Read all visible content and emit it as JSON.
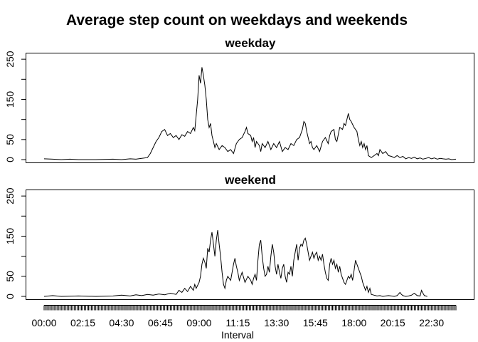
{
  "chart_data": {
    "type": "line",
    "title": "Average step count on weekdays and weekends",
    "xlabel": "Interval",
    "ylabel": "",
    "x_tick_labels": [
      "00:00",
      "02:15",
      "04:30",
      "06:45",
      "09:00",
      "11:15",
      "13:30",
      "15:45",
      "18:00",
      "20:15",
      "22:30"
    ],
    "y_ticks": [
      0,
      50,
      150,
      250
    ],
    "ylim": [
      0,
      260
    ],
    "interval_minutes": 5,
    "intervals_per_day": 288,
    "panels": [
      {
        "name": "weekday",
        "points": [
          [
            0,
            2
          ],
          [
            30,
            1
          ],
          [
            60,
            0
          ],
          [
            90,
            1
          ],
          [
            120,
            0
          ],
          [
            180,
            0
          ],
          [
            240,
            1
          ],
          [
            270,
            0
          ],
          [
            300,
            2
          ],
          [
            320,
            1
          ],
          [
            340,
            3
          ],
          [
            360,
            5
          ],
          [
            370,
            15
          ],
          [
            380,
            30
          ],
          [
            390,
            45
          ],
          [
            400,
            55
          ],
          [
            410,
            70
          ],
          [
            420,
            75
          ],
          [
            430,
            60
          ],
          [
            440,
            65
          ],
          [
            450,
            55
          ],
          [
            460,
            60
          ],
          [
            470,
            50
          ],
          [
            480,
            62
          ],
          [
            490,
            58
          ],
          [
            500,
            70
          ],
          [
            510,
            65
          ],
          [
            520,
            80
          ],
          [
            525,
            72
          ],
          [
            530,
            110
          ],
          [
            535,
            150
          ],
          [
            540,
            210
          ],
          [
            545,
            190
          ],
          [
            550,
            230
          ],
          [
            555,
            210
          ],
          [
            560,
            185
          ],
          [
            565,
            150
          ],
          [
            570,
            100
          ],
          [
            575,
            80
          ],
          [
            580,
            90
          ],
          [
            585,
            60
          ],
          [
            590,
            45
          ],
          [
            595,
            30
          ],
          [
            600,
            40
          ],
          [
            610,
            25
          ],
          [
            620,
            35
          ],
          [
            630,
            30
          ],
          [
            640,
            20
          ],
          [
            650,
            25
          ],
          [
            660,
            15
          ],
          [
            670,
            40
          ],
          [
            680,
            50
          ],
          [
            690,
            55
          ],
          [
            700,
            70
          ],
          [
            705,
            80
          ],
          [
            710,
            65
          ],
          [
            720,
            60
          ],
          [
            725,
            45
          ],
          [
            730,
            55
          ],
          [
            735,
            30
          ],
          [
            740,
            45
          ],
          [
            750,
            35
          ],
          [
            755,
            20
          ],
          [
            760,
            40
          ],
          [
            770,
            30
          ],
          [
            780,
            45
          ],
          [
            790,
            25
          ],
          [
            800,
            40
          ],
          [
            810,
            30
          ],
          [
            820,
            45
          ],
          [
            830,
            20
          ],
          [
            840,
            30
          ],
          [
            850,
            25
          ],
          [
            860,
            40
          ],
          [
            870,
            35
          ],
          [
            880,
            50
          ],
          [
            890,
            55
          ],
          [
            900,
            75
          ],
          [
            905,
            95
          ],
          [
            910,
            90
          ],
          [
            915,
            70
          ],
          [
            920,
            55
          ],
          [
            925,
            40
          ],
          [
            930,
            45
          ],
          [
            935,
            30
          ],
          [
            940,
            25
          ],
          [
            950,
            35
          ],
          [
            960,
            20
          ],
          [
            970,
            45
          ],
          [
            980,
            55
          ],
          [
            990,
            40
          ],
          [
            995,
            60
          ],
          [
            1000,
            70
          ],
          [
            1010,
            75
          ],
          [
            1015,
            50
          ],
          [
            1020,
            45
          ],
          [
            1030,
            80
          ],
          [
            1040,
            75
          ],
          [
            1045,
            90
          ],
          [
            1050,
            85
          ],
          [
            1055,
            100
          ],
          [
            1060,
            115
          ],
          [
            1065,
            100
          ],
          [
            1070,
            95
          ],
          [
            1080,
            80
          ],
          [
            1090,
            70
          ],
          [
            1095,
            50
          ],
          [
            1100,
            35
          ],
          [
            1105,
            45
          ],
          [
            1110,
            30
          ],
          [
            1115,
            40
          ],
          [
            1120,
            25
          ],
          [
            1125,
            35
          ],
          [
            1130,
            10
          ],
          [
            1140,
            5
          ],
          [
            1150,
            10
          ],
          [
            1160,
            15
          ],
          [
            1165,
            10
          ],
          [
            1170,
            25
          ],
          [
            1175,
            20
          ],
          [
            1180,
            15
          ],
          [
            1190,
            20
          ],
          [
            1200,
            10
          ],
          [
            1210,
            8
          ],
          [
            1220,
            5
          ],
          [
            1230,
            10
          ],
          [
            1240,
            5
          ],
          [
            1250,
            8
          ],
          [
            1260,
            2
          ],
          [
            1270,
            5
          ],
          [
            1280,
            3
          ],
          [
            1290,
            6
          ],
          [
            1300,
            2
          ],
          [
            1310,
            4
          ],
          [
            1320,
            1
          ],
          [
            1330,
            3
          ],
          [
            1340,
            5
          ],
          [
            1350,
            2
          ],
          [
            1360,
            4
          ],
          [
            1370,
            1
          ],
          [
            1380,
            3
          ],
          [
            1390,
            2
          ],
          [
            1400,
            1
          ],
          [
            1410,
            2
          ],
          [
            1420,
            0
          ],
          [
            1435,
            1
          ]
        ]
      },
      {
        "name": "weekend",
        "points": [
          [
            0,
            0
          ],
          [
            30,
            2
          ],
          [
            60,
            0
          ],
          [
            120,
            1
          ],
          [
            180,
            0
          ],
          [
            240,
            1
          ],
          [
            270,
            3
          ],
          [
            300,
            1
          ],
          [
            320,
            4
          ],
          [
            340,
            2
          ],
          [
            360,
            5
          ],
          [
            380,
            3
          ],
          [
            400,
            6
          ],
          [
            420,
            4
          ],
          [
            440,
            8
          ],
          [
            460,
            5
          ],
          [
            470,
            15
          ],
          [
            480,
            10
          ],
          [
            490,
            20
          ],
          [
            500,
            12
          ],
          [
            510,
            25
          ],
          [
            520,
            15
          ],
          [
            525,
            30
          ],
          [
            530,
            20
          ],
          [
            540,
            35
          ],
          [
            545,
            50
          ],
          [
            550,
            80
          ],
          [
            555,
            95
          ],
          [
            560,
            85
          ],
          [
            565,
            70
          ],
          [
            570,
            120
          ],
          [
            575,
            110
          ],
          [
            580,
            140
          ],
          [
            585,
            160
          ],
          [
            590,
            130
          ],
          [
            595,
            100
          ],
          [
            600,
            140
          ],
          [
            605,
            165
          ],
          [
            610,
            130
          ],
          [
            615,
            100
          ],
          [
            620,
            60
          ],
          [
            625,
            30
          ],
          [
            630,
            20
          ],
          [
            635,
            40
          ],
          [
            640,
            50
          ],
          [
            650,
            40
          ],
          [
            655,
            60
          ],
          [
            660,
            80
          ],
          [
            665,
            95
          ],
          [
            670,
            75
          ],
          [
            675,
            60
          ],
          [
            680,
            40
          ],
          [
            690,
            60
          ],
          [
            700,
            35
          ],
          [
            710,
            50
          ],
          [
            720,
            40
          ],
          [
            725,
            30
          ],
          [
            730,
            45
          ],
          [
            735,
            55
          ],
          [
            740,
            40
          ],
          [
            745,
            90
          ],
          [
            750,
            130
          ],
          [
            755,
            140
          ],
          [
            760,
            100
          ],
          [
            765,
            70
          ],
          [
            770,
            50
          ],
          [
            775,
            55
          ],
          [
            780,
            75
          ],
          [
            785,
            60
          ],
          [
            790,
            100
          ],
          [
            795,
            130
          ],
          [
            800,
            110
          ],
          [
            805,
            75
          ],
          [
            810,
            55
          ],
          [
            815,
            80
          ],
          [
            820,
            60
          ],
          [
            825,
            45
          ],
          [
            830,
            70
          ],
          [
            835,
            80
          ],
          [
            840,
            50
          ],
          [
            845,
            35
          ],
          [
            850,
            60
          ],
          [
            855,
            55
          ],
          [
            860,
            75
          ],
          [
            865,
            50
          ],
          [
            870,
            90
          ],
          [
            875,
            110
          ],
          [
            880,
            130
          ],
          [
            885,
            90
          ],
          [
            890,
            120
          ],
          [
            895,
            130
          ],
          [
            900,
            125
          ],
          [
            905,
            140
          ],
          [
            910,
            145
          ],
          [
            915,
            130
          ],
          [
            920,
            110
          ],
          [
            925,
            90
          ],
          [
            930,
            100
          ],
          [
            935,
            110
          ],
          [
            940,
            95
          ],
          [
            945,
            105
          ],
          [
            950,
            110
          ],
          [
            955,
            90
          ],
          [
            960,
            100
          ],
          [
            965,
            90
          ],
          [
            970,
            105
          ],
          [
            975,
            80
          ],
          [
            980,
            60
          ],
          [
            985,
            45
          ],
          [
            990,
            40
          ],
          [
            995,
            80
          ],
          [
            1000,
            95
          ],
          [
            1005,
            80
          ],
          [
            1010,
            90
          ],
          [
            1015,
            70
          ],
          [
            1020,
            80
          ],
          [
            1025,
            60
          ],
          [
            1030,
            75
          ],
          [
            1035,
            55
          ],
          [
            1040,
            45
          ],
          [
            1045,
            35
          ],
          [
            1050,
            30
          ],
          [
            1055,
            40
          ],
          [
            1060,
            50
          ],
          [
            1065,
            45
          ],
          [
            1070,
            55
          ],
          [
            1075,
            40
          ],
          [
            1080,
            65
          ],
          [
            1085,
            90
          ],
          [
            1090,
            80
          ],
          [
            1095,
            70
          ],
          [
            1100,
            60
          ],
          [
            1105,
            50
          ],
          [
            1110,
            35
          ],
          [
            1115,
            25
          ],
          [
            1120,
            15
          ],
          [
            1125,
            25
          ],
          [
            1130,
            10
          ],
          [
            1135,
            20
          ],
          [
            1140,
            5
          ],
          [
            1150,
            3
          ],
          [
            1160,
            1
          ],
          [
            1170,
            2
          ],
          [
            1180,
            0
          ],
          [
            1190,
            1
          ],
          [
            1200,
            2
          ],
          [
            1210,
            1
          ],
          [
            1220,
            0
          ],
          [
            1230,
            2
          ],
          [
            1240,
            10
          ],
          [
            1245,
            5
          ],
          [
            1250,
            2
          ],
          [
            1260,
            0
          ],
          [
            1270,
            1
          ],
          [
            1280,
            3
          ],
          [
            1290,
            8
          ],
          [
            1295,
            5
          ],
          [
            1300,
            2
          ],
          [
            1310,
            1
          ],
          [
            1315,
            15
          ],
          [
            1320,
            8
          ],
          [
            1325,
            2
          ],
          [
            1330,
            1
          ],
          [
            1335,
            0
          ]
        ]
      }
    ]
  }
}
